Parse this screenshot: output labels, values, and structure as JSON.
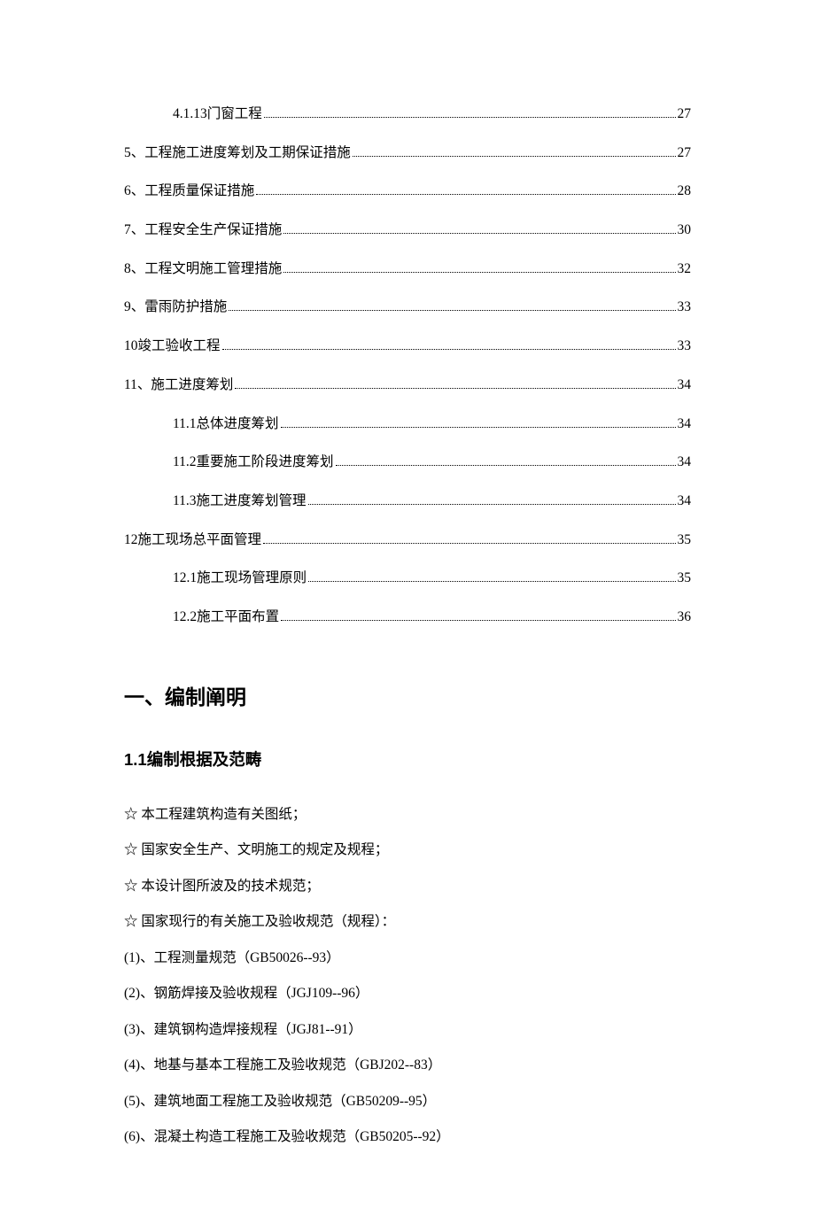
{
  "toc": {
    "entries": [
      {
        "label": "4.1.13门窗工程",
        "page": "27",
        "indent": 1
      },
      {
        "label": "5、工程施工进度筹划及工期保证措施",
        "page": "27",
        "indent": 0
      },
      {
        "label": "6、工程质量保证措施",
        "page": "28",
        "indent": 0
      },
      {
        "label": "7、工程安全生产保证措施",
        "page": "30",
        "indent": 0
      },
      {
        "label": "8、工程文明施工管理措施",
        "page": "32",
        "indent": 0
      },
      {
        "label": "9、雷雨防护措施",
        "page": "33",
        "indent": 0
      },
      {
        "label": "10竣工验收工程",
        "page": "33",
        "indent": 0
      },
      {
        "label": "11、施工进度筹划",
        "page": "34",
        "indent": 0
      },
      {
        "label": "11.1总体进度筹划",
        "page": "34",
        "indent": 1
      },
      {
        "label": "11.2重要施工阶段进度筹划",
        "page": "34",
        "indent": 1
      },
      {
        "label": "11.3施工进度筹划管理",
        "page": "34",
        "indent": 1
      },
      {
        "label": "12施工现场总平面管理",
        "page": "35",
        "indent": 0
      },
      {
        "label": "12.1施工现场管理原则",
        "page": "35",
        "indent": 1
      },
      {
        "label": "12.2施工平面布置",
        "page": "36",
        "indent": 1
      }
    ]
  },
  "section": {
    "heading1": "一、编制阐明",
    "heading2": "1.1编制根据及范畴",
    "lines": [
      "☆  本工程建筑构造有关图纸；",
      "☆  国家安全生产、文明施工的规定及规程；",
      "☆  本设计图所波及的技术规范；",
      "☆  国家现行的有关施工及验收规范（规程）：",
      "(1)、工程测量规范（GB50026--93）",
      "(2)、钢筋焊接及验收规程（JGJ109--96）",
      "(3)、建筑钢构造焊接规程（JGJ81--91）",
      "(4)、地基与基本工程施工及验收规范（GBJ202--83）",
      "(5)、建筑地面工程施工及验收规范（GB50209--95）",
      "(6)、混凝土构造工程施工及验收规范（GB50205--92）"
    ]
  }
}
